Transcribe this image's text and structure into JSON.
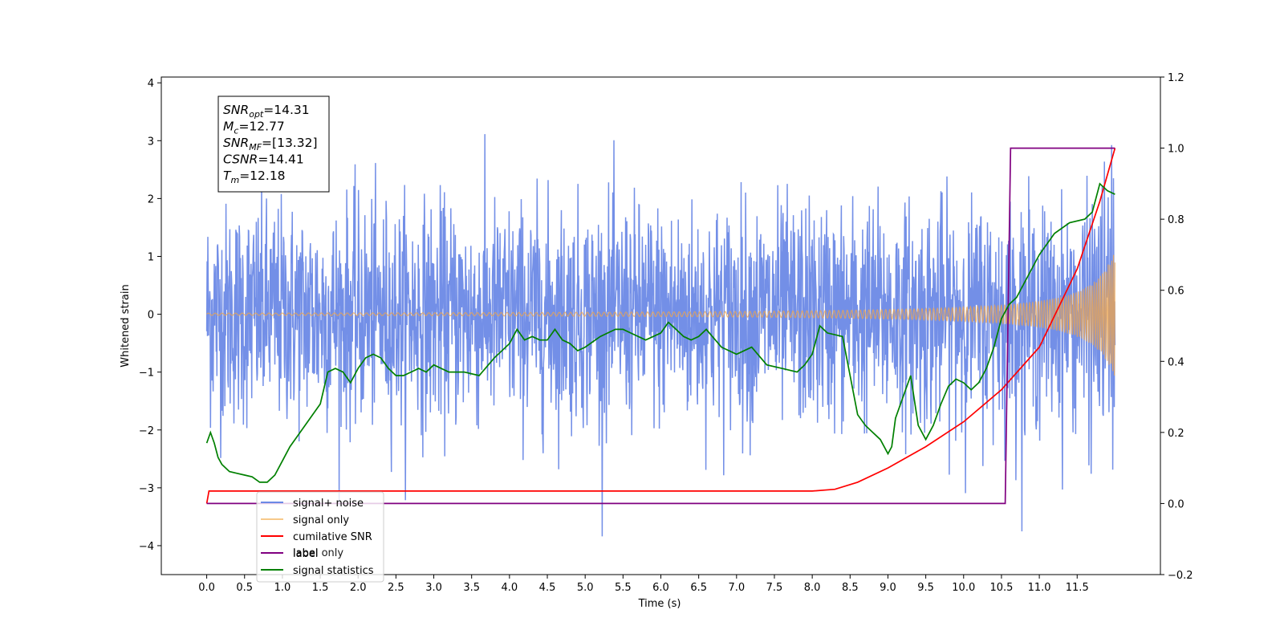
{
  "chart_data": {
    "type": "line",
    "xlabel": "Time (s)",
    "ylabel": "Whitened strain",
    "xlim": [
      -0.6,
      12.6
    ],
    "ylim": [
      -4.5,
      4.1
    ],
    "y2lim": [
      -0.2,
      1.2
    ],
    "x_ticks": [
      "0.0",
      "0.5",
      "1.0",
      "1.5",
      "2.0",
      "2.5",
      "3.0",
      "3.5",
      "4.0",
      "4.5",
      "5.0",
      "5.5",
      "6.0",
      "6.5",
      "7.0",
      "7.5",
      "8.0",
      "8.5",
      "9.0",
      "9.5",
      "10.0",
      "10.5",
      "11.0",
      "11.5"
    ],
    "y_ticks": [
      "4",
      "3",
      "2",
      "1",
      "0",
      "−1",
      "−2",
      "−3",
      "−4"
    ],
    "y2_ticks": [
      "1.2",
      "1.0",
      "0.8",
      "0.6",
      "0.4",
      "0.2",
      "0.0",
      "−0.2"
    ],
    "legend_position": "lower-left",
    "info_box": {
      "lines": [
        {
          "base": "SNR",
          "sub": "opt",
          "value": "=14.31"
        },
        {
          "base": "M",
          "sub": "c",
          "value": "=12.77"
        },
        {
          "base": "SNR",
          "sub": "MF",
          "value": "=[13.32]"
        },
        {
          "base": "CSNR",
          "sub": "",
          "value": "=14.41"
        },
        {
          "base": "T",
          "sub": "m",
          "value": "=12.18"
        }
      ]
    },
    "series": [
      {
        "name": "signal+ noise",
        "axis": "left",
        "color": "#6b89e6",
        "kind": "noise",
        "envelope_std": 0.95,
        "x_range": [
          0.0,
          12.0
        ]
      },
      {
        "name": "signal only",
        "axis": "left",
        "color": "#f2a54a",
        "kind": "chirp",
        "amplitude_end": 1.15,
        "x_range": [
          0.0,
          12.0
        ]
      },
      {
        "name": "cumilative SNR",
        "axis": "right",
        "color": "#ff0000",
        "x": [
          0.0,
          0.03,
          8.0,
          8.3,
          8.6,
          9.0,
          9.5,
          10.0,
          10.5,
          11.0,
          11.5,
          11.8,
          12.0
        ],
        "y": [
          0.0,
          0.035,
          0.035,
          0.04,
          0.06,
          0.1,
          0.16,
          0.23,
          0.32,
          0.44,
          0.66,
          0.85,
          1.0
        ]
      },
      {
        "name": "label",
        "axis": "right",
        "color": "#800080",
        "x": [
          0.0,
          10.55,
          10.62,
          12.0
        ],
        "y": [
          0.0,
          0.0,
          1.0,
          1.0
        ]
      },
      {
        "name": "label only",
        "axis": "right",
        "color": "#ffffff",
        "hidden": true,
        "x": [],
        "y": []
      },
      {
        "name": "signal statistics",
        "axis": "right",
        "color": "#008000",
        "x": [
          0.0,
          0.05,
          0.1,
          0.15,
          0.2,
          0.3,
          0.4,
          0.5,
          0.6,
          0.7,
          0.8,
          0.9,
          1.0,
          1.1,
          1.2,
          1.3,
          1.4,
          1.5,
          1.6,
          1.7,
          1.8,
          1.9,
          2.0,
          2.1,
          2.2,
          2.3,
          2.4,
          2.5,
          2.6,
          2.7,
          2.8,
          2.9,
          3.0,
          3.2,
          3.4,
          3.6,
          3.8,
          4.0,
          4.1,
          4.2,
          4.3,
          4.4,
          4.5,
          4.6,
          4.7,
          4.8,
          4.9,
          5.0,
          5.2,
          5.4,
          5.5,
          5.6,
          5.8,
          6.0,
          6.1,
          6.2,
          6.3,
          6.4,
          6.5,
          6.6,
          6.8,
          7.0,
          7.2,
          7.4,
          7.6,
          7.8,
          7.9,
          8.0,
          8.1,
          8.2,
          8.4,
          8.5,
          8.6,
          8.7,
          8.8,
          8.9,
          9.0,
          9.05,
          9.1,
          9.2,
          9.3,
          9.4,
          9.5,
          9.6,
          9.7,
          9.8,
          9.9,
          10.0,
          10.1,
          10.2,
          10.3,
          10.4,
          10.5,
          10.6,
          10.7,
          10.8,
          11.0,
          11.2,
          11.4,
          11.6,
          11.7,
          11.8,
          11.9,
          12.0
        ],
        "y": [
          0.17,
          0.2,
          0.17,
          0.13,
          0.11,
          0.09,
          0.085,
          0.08,
          0.075,
          0.06,
          0.06,
          0.08,
          0.12,
          0.16,
          0.19,
          0.22,
          0.25,
          0.28,
          0.37,
          0.38,
          0.37,
          0.34,
          0.38,
          0.41,
          0.42,
          0.41,
          0.38,
          0.36,
          0.36,
          0.37,
          0.38,
          0.37,
          0.39,
          0.37,
          0.37,
          0.36,
          0.41,
          0.45,
          0.49,
          0.46,
          0.47,
          0.46,
          0.46,
          0.49,
          0.46,
          0.45,
          0.43,
          0.44,
          0.47,
          0.49,
          0.49,
          0.48,
          0.46,
          0.48,
          0.51,
          0.49,
          0.47,
          0.46,
          0.47,
          0.49,
          0.44,
          0.42,
          0.44,
          0.39,
          0.38,
          0.37,
          0.39,
          0.42,
          0.5,
          0.48,
          0.47,
          0.36,
          0.25,
          0.22,
          0.2,
          0.18,
          0.14,
          0.16,
          0.24,
          0.3,
          0.36,
          0.22,
          0.18,
          0.22,
          0.28,
          0.33,
          0.35,
          0.34,
          0.32,
          0.34,
          0.38,
          0.44,
          0.52,
          0.56,
          0.58,
          0.62,
          0.7,
          0.76,
          0.79,
          0.8,
          0.82,
          0.9,
          0.88,
          0.87
        ]
      }
    ]
  }
}
